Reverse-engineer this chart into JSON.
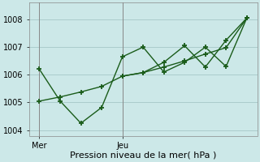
{
  "background_color": "#cce8e8",
  "grid_color": "#aacccc",
  "line_color": "#1a5c1a",
  "xlabel": "Pression niveau de la mer( hPa )",
  "ylim": [
    1003.8,
    1008.6
  ],
  "yticks": [
    1004,
    1005,
    1006,
    1007,
    1008
  ],
  "series1_x": [
    0,
    1,
    2,
    3,
    4,
    5,
    6,
    7,
    8,
    9,
    10
  ],
  "series1_y": [
    1006.2,
    1005.05,
    1004.25,
    1004.82,
    1006.65,
    1007.0,
    1006.1,
    1006.45,
    1007.0,
    1006.3,
    1008.05
  ],
  "series2_x": [
    0,
    1,
    2,
    3,
    4,
    5,
    6,
    7,
    8,
    9,
    10
  ],
  "series2_y": [
    1005.05,
    1005.2,
    1005.38,
    1005.58,
    1005.95,
    1006.08,
    1006.28,
    1006.5,
    1006.75,
    1006.98,
    1008.05
  ],
  "series3_x": [
    4,
    5,
    6,
    7,
    8,
    9,
    10
  ],
  "series3_y": [
    1005.95,
    1006.08,
    1006.45,
    1007.05,
    1006.28,
    1007.25,
    1008.05
  ],
  "xtick_positions": [
    0,
    4
  ],
  "xtick_labels": [
    "Mer",
    "Jeu"
  ],
  "vline_x": [
    0,
    4
  ],
  "ytick_fontsize": 7,
  "xtick_fontsize": 7,
  "xlabel_fontsize": 8
}
